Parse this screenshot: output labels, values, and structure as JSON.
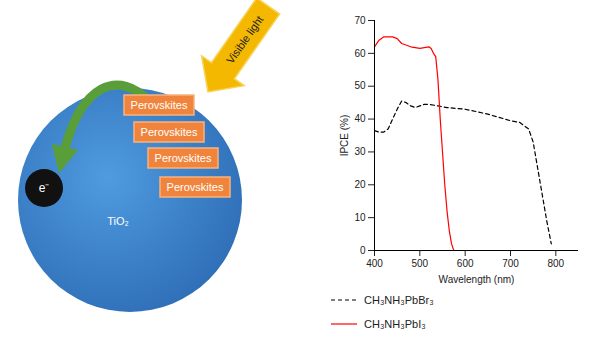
{
  "chart_data": {
    "type": "line",
    "xlabel": "Wavelength (nm)",
    "ylabel": "IPCE (%)",
    "xlim": [
      400,
      850
    ],
    "xticks": [
      400,
      500,
      600,
      700,
      800
    ],
    "ylim": [
      0,
      70
    ],
    "yticks": [
      0,
      10,
      20,
      30,
      40,
      50,
      60,
      70
    ],
    "grid": false,
    "legend": "bottom",
    "series": [
      {
        "name": "CH₃NH₃PbBr₃",
        "color": "#000000",
        "line_style": "dashed",
        "x": [
          400,
          410,
          420,
          430,
          440,
          450,
          460,
          470,
          480,
          490,
          500,
          510,
          520,
          540,
          560,
          600,
          650,
          700,
          720,
          740,
          750,
          760,
          770,
          780,
          790
        ],
        "values": [
          36.5,
          36,
          36,
          37,
          40,
          43,
          45.5,
          45,
          44,
          43.5,
          44,
          44.5,
          44.5,
          44,
          43.5,
          43,
          41.5,
          39.5,
          39,
          37,
          33,
          25,
          17,
          9,
          2
        ]
      },
      {
        "name": "CH₃NH₃PbI₃",
        "color": "#ff0000",
        "line_style": "solid",
        "x": [
          400,
          410,
          420,
          440,
          450,
          460,
          480,
          500,
          520,
          525,
          530,
          535,
          540,
          545,
          550,
          555,
          560,
          565,
          570,
          575
        ],
        "values": [
          62,
          64,
          65,
          65,
          64.5,
          63,
          62,
          61.5,
          62,
          61.5,
          60,
          59,
          52,
          40,
          30,
          20,
          12,
          6,
          2,
          0
        ]
      }
    ]
  },
  "diagram": {
    "light_label": "Visible light",
    "particle_label": "TiO₂",
    "electron_label": "e⁻",
    "boxes": [
      "Perovskites",
      "Perovskites",
      "Perovskites",
      "Perovskites"
    ]
  }
}
